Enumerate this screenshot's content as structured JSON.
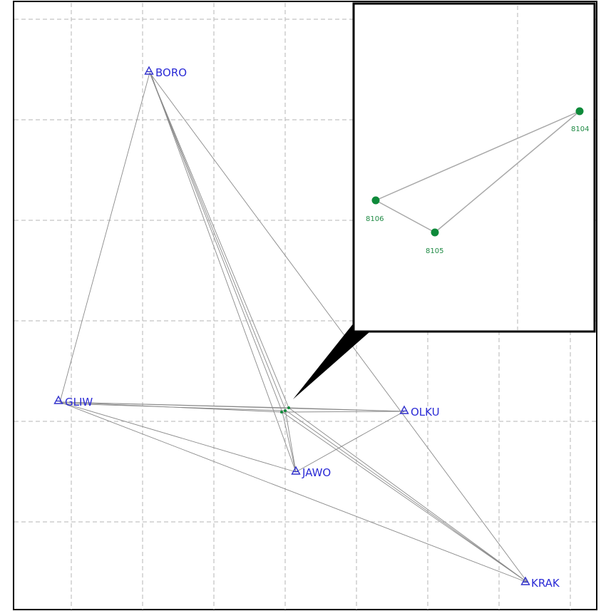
{
  "stations": [
    {
      "id": "BORO",
      "label": "BORO"
    },
    {
      "id": "GLIW",
      "label": "GLIW"
    },
    {
      "id": "OLKU",
      "label": "OLKU"
    },
    {
      "id": "JAWO",
      "label": "JAWO"
    },
    {
      "id": "KRAK",
      "label": "KRAK"
    }
  ],
  "points": [
    {
      "id": "8104",
      "label": "8104"
    },
    {
      "id": "8105",
      "label": "8105"
    },
    {
      "id": "8106",
      "label": "8106"
    }
  ],
  "colors": {
    "station": "#2b2bd6",
    "point": "#0e8a3a",
    "observation_line": "#8a8a8a",
    "grid": "#b5b5b5"
  }
}
